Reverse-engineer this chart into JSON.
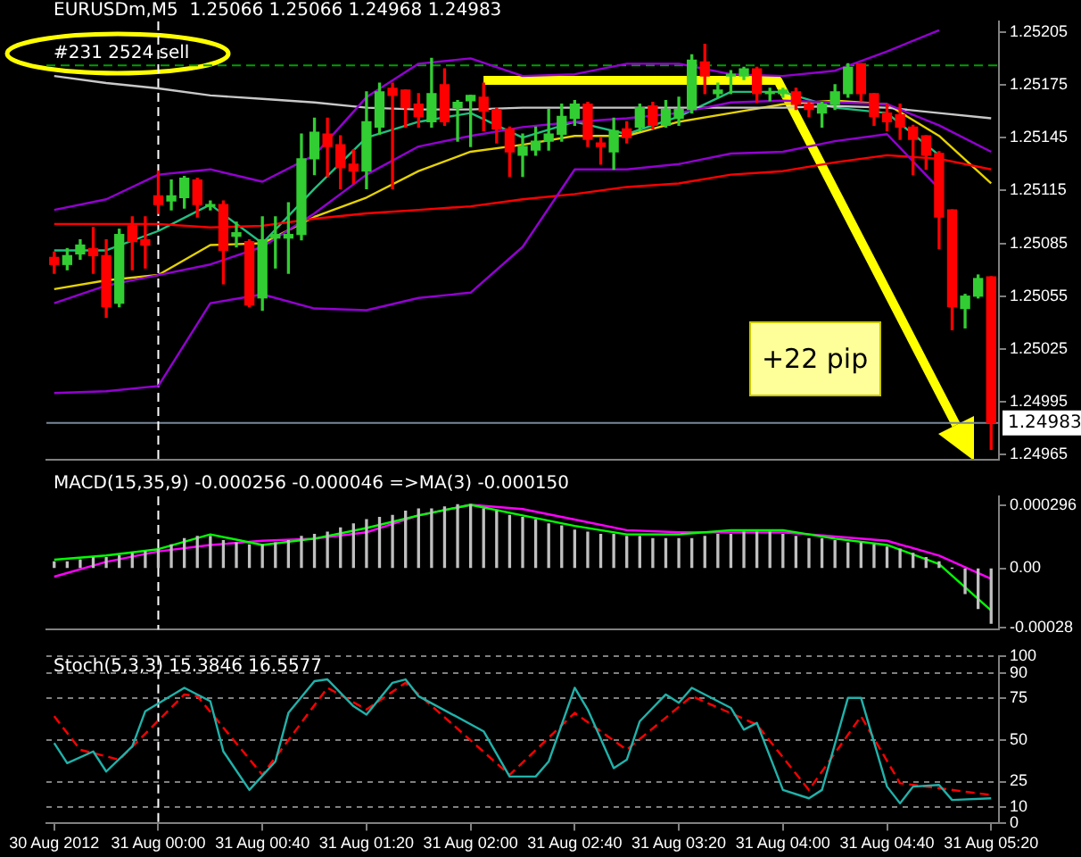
{
  "chart_data": [
    {
      "type": "candlestick",
      "title": "EURUSDm,M5  1.25066 1.25066 1.24968 1.24983",
      "tick_labels": "y",
      "x": [
        "2012-08-30T23:20",
        "2012-08-30T23:25",
        "2012-08-30T23:30",
        "2012-08-30T23:35",
        "2012-08-30T23:40",
        "2012-08-30T23:45",
        "2012-08-30T23:50",
        "2012-08-30T23:55",
        "2012-08-31T00:00",
        "2012-08-31T00:05",
        "2012-08-31T00:10",
        "2012-08-31T00:15",
        "2012-08-31T00:20",
        "2012-08-31T00:25",
        "2012-08-31T00:30",
        "2012-08-31T00:35",
        "2012-08-31T00:40",
        "2012-08-31T00:45",
        "2012-08-31T00:50",
        "2012-08-31T00:55",
        "2012-08-31T01:00",
        "2012-08-31T01:05",
        "2012-08-31T01:10",
        "2012-08-31T01:15",
        "2012-08-31T01:20",
        "2012-08-31T01:25",
        "2012-08-31T01:30",
        "2012-08-31T01:35",
        "2012-08-31T01:40",
        "2012-08-31T01:45",
        "2012-08-31T01:50",
        "2012-08-31T01:55",
        "2012-08-31T02:00",
        "2012-08-31T02:05",
        "2012-08-31T02:10",
        "2012-08-31T02:15",
        "2012-08-31T02:20",
        "2012-08-31T02:25",
        "2012-08-31T02:30",
        "2012-08-31T02:35",
        "2012-08-31T02:40",
        "2012-08-31T02:45",
        "2012-08-31T02:50",
        "2012-08-31T02:55",
        "2012-08-31T03:00",
        "2012-08-31T03:05",
        "2012-08-31T03:10",
        "2012-08-31T03:15",
        "2012-08-31T03:20",
        "2012-08-31T03:25",
        "2012-08-31T03:30",
        "2012-08-31T03:35",
        "2012-08-31T03:40",
        "2012-08-31T03:45",
        "2012-08-31T03:50",
        "2012-08-31T03:55",
        "2012-08-31T04:00",
        "2012-08-31T04:05",
        "2012-08-31T04:10",
        "2012-08-31T04:15",
        "2012-08-31T04:20",
        "2012-08-31T04:25",
        "2012-08-31T04:30",
        "2012-08-31T04:35",
        "2012-08-31T04:40",
        "2012-08-31T04:45",
        "2012-08-31T04:50",
        "2012-08-31T04:55",
        "2012-08-31T05:00",
        "2012-08-31T05:05",
        "2012-08-31T05:10",
        "2012-08-31T05:15",
        "2012-08-31T05:20"
      ],
      "ohlc": [
        [
          1.25077,
          1.2508,
          1.25068,
          1.25073
        ],
        [
          1.25073,
          1.25082,
          1.2507,
          1.25078
        ],
        [
          1.25079,
          1.25087,
          1.25076,
          1.25084
        ],
        [
          1.25082,
          1.25094,
          1.25068,
          1.25078
        ],
        [
          1.25078,
          1.25087,
          1.25043,
          1.25049
        ],
        [
          1.25051,
          1.25093,
          1.25049,
          1.2509
        ],
        [
          1.25095,
          1.251,
          1.2507,
          1.25086
        ],
        [
          1.25087,
          1.251,
          1.25071,
          1.25084
        ],
        [
          1.25112,
          1.25126,
          1.25102,
          1.25107
        ],
        [
          1.25109,
          1.25121,
          1.25104,
          1.25112
        ],
        [
          1.25111,
          1.25123,
          1.25105,
          1.25122
        ],
        [
          1.25121,
          1.25122,
          1.251,
          1.25107
        ],
        [
          1.25106,
          1.25109,
          1.25104,
          1.25107
        ],
        [
          1.25107,
          1.25109,
          1.25062,
          1.25081
        ],
        [
          1.25089,
          1.25097,
          1.25083,
          1.25091
        ],
        [
          1.25086,
          1.25087,
          1.25049,
          1.2505
        ],
        [
          1.25054,
          1.251,
          1.25047,
          1.25087
        ],
        [
          1.25088,
          1.251,
          1.25071,
          1.2509
        ],
        [
          1.25088,
          1.25108,
          1.25068,
          1.2509
        ],
        [
          1.2509,
          1.25147,
          1.25087,
          1.25133
        ],
        [
          1.25133,
          1.25156,
          1.25124,
          1.25148
        ],
        [
          1.25147,
          1.25156,
          1.25123,
          1.2514
        ],
        [
          1.25141,
          1.25146,
          1.25116,
          1.25128
        ],
        [
          1.2513,
          1.25138,
          1.25119,
          1.25126
        ],
        [
          1.25126,
          1.25171,
          1.25116,
          1.25154
        ],
        [
          1.25151,
          1.25176,
          1.25147,
          1.25171
        ],
        [
          1.25173,
          1.25176,
          1.25116,
          1.25169
        ],
        [
          1.25172,
          1.25172,
          1.25151,
          1.25162
        ],
        [
          1.25164,
          1.2517,
          1.25151,
          1.25157
        ],
        [
          1.25154,
          1.2519,
          1.25151,
          1.2517
        ],
        [
          1.25175,
          1.25184,
          1.25152,
          1.25154
        ],
        [
          1.25162,
          1.25166,
          1.25143,
          1.25165
        ],
        [
          1.25166,
          1.25169,
          1.2514,
          1.25169
        ],
        [
          1.25168,
          1.25176,
          1.25149,
          1.2516
        ],
        [
          1.25161,
          1.25162,
          1.25142,
          1.2515
        ],
        [
          1.2515,
          1.25151,
          1.25123,
          1.25137
        ],
        [
          1.25135,
          1.25147,
          1.25123,
          1.2514
        ],
        [
          1.25138,
          1.25151,
          1.25135,
          1.25143
        ],
        [
          1.25143,
          1.25161,
          1.25138,
          1.25147
        ],
        [
          1.25147,
          1.25164,
          1.25143,
          1.25157
        ],
        [
          1.25156,
          1.25166,
          1.25152,
          1.25164
        ],
        [
          1.25164,
          1.25165,
          1.2514,
          1.25144
        ],
        [
          1.25142,
          1.25145,
          1.2513,
          1.2514
        ],
        [
          1.25137,
          1.25156,
          1.25127,
          1.25149
        ],
        [
          1.2515,
          1.25154,
          1.25142,
          1.25145
        ],
        [
          1.25151,
          1.25164,
          1.25149,
          1.25162
        ],
        [
          1.25163,
          1.25165,
          1.2515,
          1.25152
        ],
        [
          1.25152,
          1.25166,
          1.25151,
          1.25161
        ],
        [
          1.25156,
          1.25168,
          1.25152,
          1.25161
        ],
        [
          1.25161,
          1.25192,
          1.25159,
          1.25189
        ],
        [
          1.25188,
          1.25198,
          1.2517,
          1.2518
        ],
        [
          1.2517,
          1.25176,
          1.25168,
          1.25172
        ],
        [
          1.2518,
          1.25183,
          1.2517,
          1.25181
        ],
        [
          1.2518,
          1.25185,
          1.25178,
          1.25184
        ],
        [
          1.25184,
          1.25185,
          1.25165,
          1.2517
        ],
        [
          1.2517,
          1.25173,
          1.25166,
          1.25171
        ],
        [
          1.2517,
          1.25173,
          1.25168,
          1.25172
        ],
        [
          1.25171,
          1.25173,
          1.25161,
          1.25164
        ],
        [
          1.25164,
          1.25165,
          1.25157,
          1.25161
        ],
        [
          1.25159,
          1.25165,
          1.25151,
          1.25164
        ],
        [
          1.25164,
          1.25175,
          1.25161,
          1.25171
        ],
        [
          1.2517,
          1.25187,
          1.25168,
          1.25185
        ],
        [
          1.25187,
          1.25187,
          1.25166,
          1.2517
        ],
        [
          1.2517,
          1.2517,
          1.25152,
          1.25157
        ],
        [
          1.25159,
          1.25164,
          1.25149,
          1.25154
        ],
        [
          1.25158,
          1.25164,
          1.25144,
          1.25151
        ],
        [
          1.25151,
          1.25152,
          1.25124,
          1.25144
        ],
        [
          1.25146,
          1.25146,
          1.25127,
          1.25135
        ],
        [
          1.25136,
          1.25137,
          1.25082,
          1.251
        ],
        [
          1.25104,
          1.25104,
          1.25036,
          1.25049
        ],
        [
          1.25048,
          1.25056,
          1.25037,
          1.25055
        ],
        [
          1.25055,
          1.25067,
          1.25054,
          1.25065
        ],
        [
          1.25066,
          1.25066,
          1.24968,
          1.24983
        ]
      ],
      "series": [
        {
          "type": "line",
          "color": "#9400d3",
          "x": [
            "2012-08-30T23:20",
            "2012-08-30T23:40",
            "2012-08-31T00:00",
            "2012-08-31T00:20",
            "2012-08-31T00:40",
            "2012-08-31T01:00",
            "2012-08-31T01:20",
            "2012-08-31T01:40",
            "2012-08-31T02:00",
            "2012-08-31T02:20",
            "2012-08-31T02:40",
            "2012-08-31T03:00",
            "2012-08-31T03:20",
            "2012-08-31T03:40",
            "2012-08-31T04:00",
            "2012-08-31T04:20",
            "2012-08-31T04:40",
            "2012-08-31T05:00"
          ],
          "values": [
            1.25104,
            1.2511,
            1.25124,
            1.25127,
            1.2512,
            1.25135,
            1.25168,
            1.25187,
            1.2519,
            1.2518,
            1.25181,
            1.25187,
            1.25187,
            1.25181,
            1.2518,
            1.25183,
            1.25194,
            1.25206
          ]
        },
        {
          "type": "line",
          "color": "#9400d3",
          "x": [
            "2012-08-30T23:20",
            "2012-08-30T23:40",
            "2012-08-31T00:00",
            "2012-08-31T00:20",
            "2012-08-31T00:40",
            "2012-08-31T01:00",
            "2012-08-31T01:20",
            "2012-08-31T01:40",
            "2012-08-31T02:00",
            "2012-08-31T02:20",
            "2012-08-31T02:40",
            "2012-08-31T03:00",
            "2012-08-31T03:20",
            "2012-08-31T03:40",
            "2012-08-31T04:00",
            "2012-08-31T04:20",
            "2012-08-31T04:40",
            "2012-08-31T05:00",
            "2012-08-31T05:20"
          ],
          "values": [
            1.25051,
            1.25061,
            1.25067,
            1.25073,
            1.25083,
            1.25102,
            1.25124,
            1.2514,
            1.25146,
            1.25151,
            1.25154,
            1.25156,
            1.25159,
            1.25165,
            1.25166,
            1.25165,
            1.25164,
            1.25152,
            1.25137
          ]
        },
        {
          "type": "line",
          "color": "#9400d3",
          "x": [
            "2012-08-30T23:20",
            "2012-08-30T23:40",
            "2012-08-31T00:00",
            "2012-08-31T00:20",
            "2012-08-31T00:40",
            "2012-08-31T01:00",
            "2012-08-31T01:20",
            "2012-08-31T01:40",
            "2012-08-31T02:00",
            "2012-08-31T02:20",
            "2012-08-31T02:40",
            "2012-08-31T03:00",
            "2012-08-31T03:20",
            "2012-08-31T03:40",
            "2012-08-31T04:00",
            "2012-08-31T04:20",
            "2012-08-31T04:40",
            "2012-08-31T05:00"
          ],
          "values": [
            1.25,
            1.25001,
            1.25004,
            1.25051,
            1.25056,
            1.25048,
            1.25047,
            1.25054,
            1.25057,
            1.25083,
            1.25127,
            1.25127,
            1.2513,
            1.25136,
            1.25137,
            1.25143,
            1.25147,
            1.25116
          ]
        },
        {
          "type": "line",
          "color": "#c8c8c8",
          "x": [
            "2012-08-30T23:20",
            "2012-08-30T23:40",
            "2012-08-31T00:00",
            "2012-08-31T00:20",
            "2012-08-31T00:40",
            "2012-08-31T01:00",
            "2012-08-31T01:20",
            "2012-08-31T01:40",
            "2012-08-31T02:00",
            "2012-08-31T02:20",
            "2012-08-31T02:40",
            "2012-08-31T03:00",
            "2012-08-31T03:20",
            "2012-08-31T03:40",
            "2012-08-31T04:00",
            "2012-08-31T04:20",
            "2012-08-31T04:40",
            "2012-08-31T05:00",
            "2012-08-31T05:20"
          ],
          "values": [
            1.2518,
            1.25176,
            1.25173,
            1.25169,
            1.25167,
            1.25165,
            1.25162,
            1.25161,
            1.25161,
            1.25162,
            1.25162,
            1.25162,
            1.25162,
            1.25162,
            1.25162,
            1.25163,
            1.25162,
            1.25159,
            1.25156
          ]
        },
        {
          "type": "line",
          "color": "#ff0000",
          "x": [
            "2012-08-30T23:20",
            "2012-08-30T23:40",
            "2012-08-31T00:00",
            "2012-08-31T00:20",
            "2012-08-31T00:40",
            "2012-08-31T01:00",
            "2012-08-31T01:20",
            "2012-08-31T01:40",
            "2012-08-31T02:00",
            "2012-08-31T02:20",
            "2012-08-31T02:40",
            "2012-08-31T03:00",
            "2012-08-31T03:20",
            "2012-08-31T03:40",
            "2012-08-31T04:00",
            "2012-08-31T04:20",
            "2012-08-31T04:40",
            "2012-08-31T05:00",
            "2012-08-31T05:20"
          ],
          "values": [
            1.25096,
            1.25096,
            1.25096,
            1.25094,
            1.25095,
            1.25099,
            1.25102,
            1.25104,
            1.25106,
            1.2511,
            1.25113,
            1.25117,
            1.25119,
            1.25124,
            1.25126,
            1.25131,
            1.25135,
            1.25133,
            1.25127
          ]
        },
        {
          "type": "line",
          "color": "#e6d200",
          "x": [
            "2012-08-30T23:20",
            "2012-08-30T23:40",
            "2012-08-31T00:00",
            "2012-08-31T00:20",
            "2012-08-31T00:40",
            "2012-08-31T01:00",
            "2012-08-31T01:20",
            "2012-08-31T01:40",
            "2012-08-31T02:00",
            "2012-08-31T02:20",
            "2012-08-31T02:40",
            "2012-08-31T03:00",
            "2012-08-31T03:20",
            "2012-08-31T03:40",
            "2012-08-31T04:00",
            "2012-08-31T04:20",
            "2012-08-31T04:40",
            "2012-08-31T05:00",
            "2012-08-31T05:20"
          ],
          "values": [
            1.25059,
            1.25064,
            1.25067,
            1.25084,
            1.25085,
            1.251,
            1.25111,
            1.25126,
            1.25137,
            1.25141,
            1.25146,
            1.25146,
            1.25154,
            1.25159,
            1.25164,
            1.25166,
            1.25164,
            1.25146,
            1.25119
          ]
        },
        {
          "type": "line",
          "color": "#20c080",
          "x": [
            "2012-08-30T23:20",
            "2012-08-30T23:40",
            "2012-08-31T00:00",
            "2012-08-31T00:20",
            "2012-08-31T00:40",
            "2012-08-31T01:00",
            "2012-08-31T01:20",
            "2012-08-31T01:40",
            "2012-08-31T02:00",
            "2012-08-31T02:20",
            "2012-08-31T02:40",
            "2012-08-31T03:00",
            "2012-08-31T03:20",
            "2012-08-31T03:40",
            "2012-08-31T04:00",
            "2012-08-31T04:20",
            "2012-08-31T04:40",
            "2012-08-31T05:00"
          ],
          "values": [
            1.25081,
            1.25081,
            1.25092,
            1.25107,
            1.25085,
            1.25116,
            1.25145,
            1.25154,
            1.25159,
            1.25145,
            1.25154,
            1.25147,
            1.25157,
            1.25171,
            1.25171,
            1.25162,
            1.25159,
            1.25135
          ]
        }
      ],
      "xlim": [
        "2012-08-30T23:17",
        "2012-08-31T05:23"
      ],
      "ylim": [
        1.24962,
        1.25211
      ],
      "yticks": [
        1.24965,
        1.24995,
        1.25025,
        1.25055,
        1.25085,
        1.25115,
        1.25145,
        1.25175,
        1.25205
      ],
      "ref_lines": [
        {
          "axis": "y",
          "value": 1.25186,
          "label": "#231 2524 sell",
          "color": "#00a000",
          "line_style": "dashed"
        },
        {
          "axis": "y",
          "value": 1.24983,
          "label": "1.24983",
          "color": "#778899",
          "line_style": "solid"
        },
        {
          "axis": "x",
          "value": "2012-08-31T00:00",
          "color": "#ffffff",
          "line_style": "dashed"
        }
      ],
      "annotations": [
        "+22 pip"
      ]
    },
    {
      "type": "bar",
      "title": "MACD(15,35,9) -0.000256 -0.000046 =>MA(3) -0.000150",
      "tick_labels": "y",
      "color": "#c0c0c0",
      "x": [
        "2012-08-30T23:20",
        "2012-08-30T23:25",
        "2012-08-30T23:30",
        "2012-08-30T23:35",
        "2012-08-30T23:40",
        "2012-08-30T23:45",
        "2012-08-30T23:50",
        "2012-08-30T23:55",
        "2012-08-31T00:00",
        "2012-08-31T00:05",
        "2012-08-31T00:10",
        "2012-08-31T00:15",
        "2012-08-31T00:20",
        "2012-08-31T00:25",
        "2012-08-31T00:30",
        "2012-08-31T00:35",
        "2012-08-31T00:40",
        "2012-08-31T00:45",
        "2012-08-31T00:50",
        "2012-08-31T00:55",
        "2012-08-31T01:00",
        "2012-08-31T01:05",
        "2012-08-31T01:10",
        "2012-08-31T01:15",
        "2012-08-31T01:20",
        "2012-08-31T01:25",
        "2012-08-31T01:30",
        "2012-08-31T01:35",
        "2012-08-31T01:40",
        "2012-08-31T01:45",
        "2012-08-31T01:50",
        "2012-08-31T01:55",
        "2012-08-31T02:00",
        "2012-08-31T02:05",
        "2012-08-31T02:10",
        "2012-08-31T02:15",
        "2012-08-31T02:20",
        "2012-08-31T02:25",
        "2012-08-31T02:30",
        "2012-08-31T02:35",
        "2012-08-31T02:40",
        "2012-08-31T02:45",
        "2012-08-31T02:50",
        "2012-08-31T02:55",
        "2012-08-31T03:00",
        "2012-08-31T03:05",
        "2012-08-31T03:10",
        "2012-08-31T03:15",
        "2012-08-31T03:20",
        "2012-08-31T03:25",
        "2012-08-31T03:30",
        "2012-08-31T03:35",
        "2012-08-31T03:40",
        "2012-08-31T03:45",
        "2012-08-31T03:50",
        "2012-08-31T03:55",
        "2012-08-31T04:00",
        "2012-08-31T04:05",
        "2012-08-31T04:10",
        "2012-08-31T04:15",
        "2012-08-31T04:20",
        "2012-08-31T04:25",
        "2012-08-31T04:30",
        "2012-08-31T04:35",
        "2012-08-31T04:40",
        "2012-08-31T04:45",
        "2012-08-31T04:50",
        "2012-08-31T04:55",
        "2012-08-31T05:00",
        "2012-08-31T05:05",
        "2012-08-31T05:10",
        "2012-08-31T05:15",
        "2012-08-31T05:20"
      ],
      "values": [
        3e-05,
        3e-05,
        4e-05,
        5e-05,
        5e-05,
        6e-05,
        7e-05,
        8e-05,
        9e-05,
        0.00011,
        0.00014,
        0.00015,
        0.00015,
        0.00013,
        0.00012,
        0.00011,
        0.00011,
        0.00012,
        0.00013,
        0.00015,
        0.00016,
        0.00017,
        0.00019,
        0.00021,
        0.00023,
        0.00024,
        0.00025,
        0.00027,
        0.00028,
        0.00028,
        0.00029,
        0.0003,
        0.0003,
        0.00028,
        0.00027,
        0.00025,
        0.00024,
        0.00023,
        0.00021,
        0.0002,
        0.00018,
        0.00017,
        0.00016,
        0.00016,
        0.00015,
        0.00015,
        0.00014,
        0.00014,
        0.00014,
        0.00014,
        0.00015,
        0.00016,
        0.00016,
        0.00017,
        0.00017,
        0.00017,
        0.00016,
        0.00015,
        0.00014,
        0.00014,
        0.00013,
        0.00012,
        0.00012,
        0.00011,
        0.0001,
        9e-05,
        7e-05,
        5e-05,
        3e-05,
        0,
        -0.00012,
        -0.00019,
        -0.00026
      ],
      "series": [
        {
          "type": "line",
          "color": "#00ff00",
          "x": [
            "2012-08-30T23:20",
            "2012-08-30T23:40",
            "2012-08-31T00:00",
            "2012-08-31T00:20",
            "2012-08-31T00:40",
            "2012-08-31T01:00",
            "2012-08-31T01:20",
            "2012-08-31T01:40",
            "2012-08-31T02:00",
            "2012-08-31T02:20",
            "2012-08-31T02:40",
            "2012-08-31T03:00",
            "2012-08-31T03:20",
            "2012-08-31T03:40",
            "2012-08-31T04:00",
            "2012-08-31T04:20",
            "2012-08-31T04:40",
            "2012-08-31T05:00",
            "2012-08-31T05:20"
          ],
          "values": [
            4e-05,
            6e-05,
            9e-05,
            0.00016,
            0.00011,
            0.00014,
            0.00019,
            0.00025,
            0.0003,
            0.00025,
            0.0002,
            0.00016,
            0.00016,
            0.00018,
            0.00018,
            0.00014,
            0.00011,
            2e-05,
            -0.0002
          ]
        },
        {
          "type": "line",
          "color": "#ff00ff",
          "x": [
            "2012-08-30T23:20",
            "2012-08-30T23:40",
            "2012-08-31T00:00",
            "2012-08-31T00:20",
            "2012-08-31T00:40",
            "2012-08-31T01:00",
            "2012-08-31T01:20",
            "2012-08-31T01:40",
            "2012-08-31T02:00",
            "2012-08-31T02:20",
            "2012-08-31T02:40",
            "2012-08-31T03:00",
            "2012-08-31T03:20",
            "2012-08-31T03:40",
            "2012-08-31T04:00",
            "2012-08-31T04:20",
            "2012-08-31T04:40",
            "2012-08-31T05:00",
            "2012-08-31T05:20"
          ],
          "values": [
            -4e-05,
            3e-05,
            8e-05,
            0.00011,
            0.00013,
            0.00014,
            0.00017,
            0.00025,
            0.0003,
            0.00028,
            0.00023,
            0.00018,
            0.00017,
            0.00017,
            0.00017,
            0.00015,
            0.00013,
            6e-05,
            -5e-05
          ]
        }
      ],
      "xlim": [
        "2012-08-30T23:17",
        "2012-08-31T05:23"
      ],
      "ylim": [
        -0.00029,
        0.00034
      ],
      "yticks": [
        -0.00028,
        {
          "value": 0,
          "label": "0.00"
        },
        0.000296
      ],
      "ref_lines": [
        {
          "axis": "x",
          "value": "2012-08-31T00:00",
          "color": "#ffffff",
          "line_style": "dashed"
        }
      ]
    },
    {
      "type": "line",
      "title": "Stoch(5,3,3) 15.3846 16.5577",
      "grid": "y",
      "series": [
        {
          "color": "#20b2aa",
          "x": [
            "2012-08-30T23:20",
            "2012-08-30T23:25",
            "2012-08-30T23:35",
            "2012-08-30T23:40",
            "2012-08-30T23:50",
            "2012-08-30T23:55",
            "2012-08-31T00:10",
            "2012-08-31T00:20",
            "2012-08-31T00:25",
            "2012-08-31T00:35",
            "2012-08-31T00:45",
            "2012-08-31T00:50",
            "2012-08-31T01:00",
            "2012-08-31T01:05",
            "2012-08-31T01:15",
            "2012-08-31T01:20",
            "2012-08-31T01:30",
            "2012-08-31T01:35",
            "2012-08-31T01:40",
            "2012-08-31T02:05",
            "2012-08-31T02:15",
            "2012-08-31T02:25",
            "2012-08-31T02:30",
            "2012-08-31T02:40",
            "2012-08-31T02:45",
            "2012-08-31T02:55",
            "2012-08-31T03:00",
            "2012-08-31T03:05",
            "2012-08-31T03:15",
            "2012-08-31T03:20",
            "2012-08-31T03:25",
            "2012-08-31T03:40",
            "2012-08-31T03:45",
            "2012-08-31T03:50",
            "2012-08-31T04:00",
            "2012-08-31T04:10",
            "2012-08-31T04:15",
            "2012-08-31T04:25",
            "2012-08-31T04:30",
            "2012-08-31T04:40",
            "2012-08-31T04:45",
            "2012-08-31T04:50",
            "2012-08-31T05:00",
            "2012-08-31T05:05",
            "2012-08-31T05:20"
          ],
          "values": [
            48,
            36,
            43,
            31,
            46,
            67,
            81,
            73,
            43,
            20,
            37,
            66,
            85,
            86,
            70,
            65,
            84,
            86,
            76,
            55,
            28,
            28,
            37,
            81,
            68,
            33,
            38,
            61,
            77,
            72,
            81,
            69,
            56,
            60,
            20,
            15,
            20,
            75,
            75,
            22,
            12,
            22,
            23,
            14,
            15
          ]
        },
        {
          "color": "#ff0000",
          "line_style": "dashed",
          "x": [
            "2012-08-30T23:20",
            "2012-08-30T23:30",
            "2012-08-30T23:45",
            "2012-08-31T00:10",
            "2012-08-31T00:15",
            "2012-08-31T00:40",
            "2012-08-31T01:05",
            "2012-08-31T01:20",
            "2012-08-31T01:35",
            "2012-08-31T02:15",
            "2012-08-31T02:40",
            "2012-08-31T03:00",
            "2012-08-31T03:25",
            "2012-08-31T03:50",
            "2012-08-31T04:10",
            "2012-08-31T04:30",
            "2012-08-31T04:45",
            "2012-08-31T05:20"
          ],
          "values": [
            64,
            44,
            38,
            77,
            76,
            29,
            81,
            68,
            84,
            29,
            66,
            44,
            76,
            59,
            20,
            64,
            24,
            17
          ]
        }
      ],
      "xlim": [
        "2012-08-30T23:17",
        "2012-08-31T05:23"
      ],
      "xticks": [
        {
          "value": "2012-08-30T23:20",
          "label": "30 Aug 2012"
        },
        {
          "value": "2012-08-31T00:00",
          "label": "31 Aug 00:00"
        },
        {
          "value": "2012-08-31T00:40",
          "label": "31 Aug 00:40"
        },
        {
          "value": "2012-08-31T01:20",
          "label": "31 Aug 01:20"
        },
        {
          "value": "2012-08-31T02:00",
          "label": "31 Aug 02:00"
        },
        {
          "value": "2012-08-31T02:40",
          "label": "31 Aug 02:40"
        },
        {
          "value": "2012-08-31T03:20",
          "label": "31 Aug 03:20"
        },
        {
          "value": "2012-08-31T04:00",
          "label": "31 Aug 04:00"
        },
        {
          "value": "2012-08-31T04:40",
          "label": "31 Aug 04:40"
        },
        {
          "value": "2012-08-31T05:20",
          "label": "31 Aug 05:20"
        }
      ],
      "ylim": [
        0,
        100
      ],
      "yticks": [
        0,
        10,
        25,
        50,
        75,
        90,
        100
      ],
      "ref_lines": [
        {
          "axis": "x",
          "value": "2012-08-31T00:00",
          "color": "#ffffff",
          "line_style": "dashed"
        }
      ]
    }
  ]
}
